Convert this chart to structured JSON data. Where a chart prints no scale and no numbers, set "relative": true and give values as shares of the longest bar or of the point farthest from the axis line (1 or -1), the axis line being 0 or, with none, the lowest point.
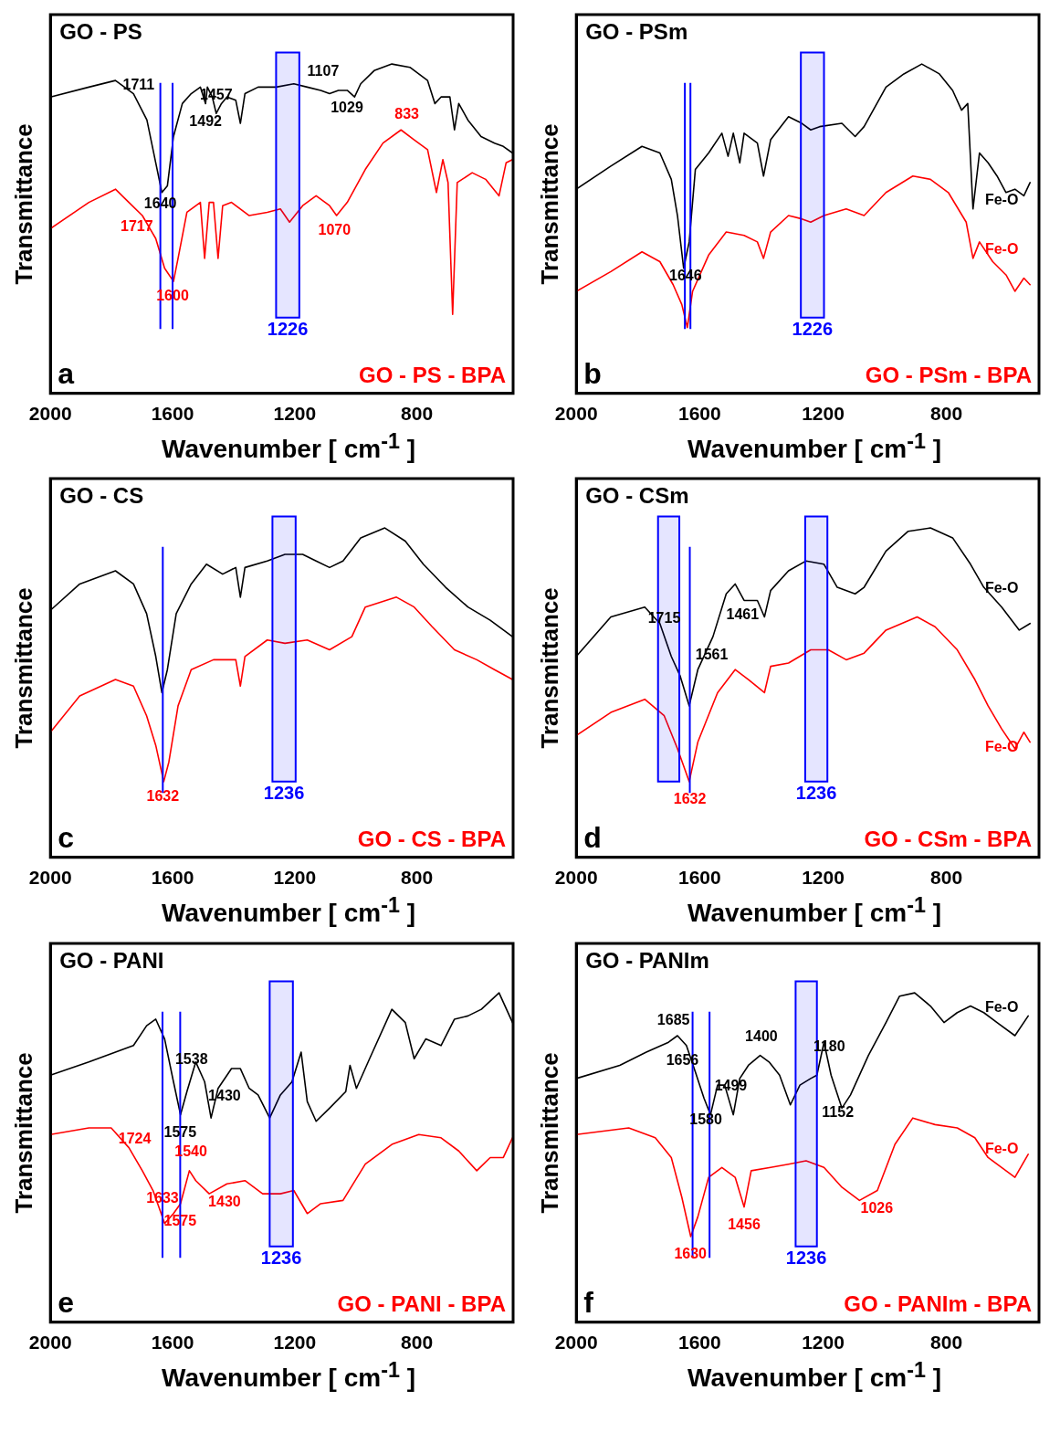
{
  "chart_data": [
    {
      "type": "line",
      "relative": true,
      "marker": "none",
      "ylabel": "Transmittance",
      "xlabel": "Wavenumber  [ cm$^{-1}$ ]",
      "xlim": [
        2000,
        485
      ],
      "xticks": [
        2000,
        1600,
        1200,
        800
      ],
      "series": [
        {
          "name": "GO - PS",
          "color": "#000000",
          "x": [
            2000,
            1874,
            1787,
            1728,
            1684,
            1655,
            1635,
            1617,
            1597,
            1568,
            1539,
            1509,
            1492,
            1486,
            1470,
            1457,
            1440,
            1422,
            1393,
            1378,
            1363,
            1320,
            1261,
            1203,
            1159,
            1115,
            1086,
            1057,
            1028,
            1004,
            984,
            940,
            882,
            823,
            765,
            741,
            721,
            692,
            677,
            663,
            633,
            590,
            546,
            517,
            487
          ],
          "values": [
            0.9,
            0.93,
            0.95,
            0.91,
            0.83,
            0.7,
            0.61,
            0.63,
            0.78,
            0.88,
            0.91,
            0.93,
            0.88,
            0.93,
            0.9,
            0.85,
            0.88,
            0.9,
            0.89,
            0.82,
            0.91,
            0.93,
            0.93,
            0.94,
            0.93,
            0.92,
            0.91,
            0.92,
            0.92,
            0.9,
            0.94,
            0.98,
            1.0,
            0.99,
            0.95,
            0.88,
            0.9,
            0.9,
            0.8,
            0.88,
            0.83,
            0.78,
            0.76,
            0.75,
            0.73
          ]
        },
        {
          "name": "GO - PS - BPA",
          "color": "#ff0000",
          "x": [
            2000,
            1874,
            1787,
            1743,
            1699,
            1655,
            1626,
            1597,
            1582,
            1553,
            1509,
            1495,
            1480,
            1466,
            1451,
            1436,
            1407,
            1349,
            1290,
            1247,
            1217,
            1174,
            1130,
            1086,
            1063,
            1028,
            969,
            911,
            852,
            809,
            765,
            736,
            715,
            698,
            683,
            668,
            619,
            575,
            531,
            508,
            487
          ],
          "values": [
            0.5,
            0.58,
            0.62,
            0.58,
            0.54,
            0.47,
            0.38,
            0.34,
            0.41,
            0.55,
            0.58,
            0.41,
            0.58,
            0.58,
            0.41,
            0.57,
            0.58,
            0.54,
            0.55,
            0.56,
            0.52,
            0.57,
            0.6,
            0.57,
            0.54,
            0.58,
            0.68,
            0.76,
            0.8,
            0.77,
            0.74,
            0.61,
            0.71,
            0.64,
            0.24,
            0.64,
            0.67,
            0.65,
            0.6,
            0.7,
            0.71
          ]
        }
      ],
      "bands": [
        {
          "axis": "x",
          "from": 1261,
          "to": 1185,
          "label": "1226",
          "color": "#0000ff"
        }
      ],
      "ref_lines": [
        {
          "axis": "x",
          "value": 1640,
          "color": "#0000ff"
        },
        {
          "axis": "x",
          "value": 1600,
          "color": "#0000ff"
        }
      ],
      "annotations": [
        "a",
        {
          "text": "1711",
          "x": 1711,
          "y": 0.88
        },
        {
          "text": "1640",
          "x": 1640,
          "y": 0.63
        },
        {
          "text": "1492",
          "x": 1492,
          "y": 0.88
        },
        {
          "text": "1457",
          "x": 1457,
          "y": 0.85
        },
        {
          "text": "1107",
          "x": 1107,
          "y": 0.92
        },
        {
          "text": "1029",
          "x": 1029,
          "y": 0.92
        },
        {
          "text": "833",
          "x": 833,
          "y": 0.79
        },
        {
          "text": "1717",
          "x": 1717,
          "y": 0.56
        },
        {
          "text": "1600",
          "x": 1600,
          "y": 0.35
        },
        {
          "text": "1070",
          "x": 1070,
          "y": 0.55
        }
      ]
    },
    {
      "type": "line",
      "relative": true,
      "marker": "none",
      "ylabel": "Transmittance",
      "xlabel": "Wavenumber  [ cm$^{-1}$ ]",
      "xlim": [
        2000,
        500
      ],
      "xticks": [
        2000,
        1600,
        1200,
        800
      ],
      "series": [
        {
          "name": "GO - PSm",
          "color": "#000000",
          "x": [
            2000,
            1888,
            1787,
            1729,
            1692,
            1672,
            1652,
            1634,
            1614,
            1571,
            1528,
            1508,
            1491,
            1470,
            1456,
            1413,
            1393,
            1370,
            1312,
            1269,
            1240,
            1211,
            1139,
            1096,
            1067,
            996,
            938,
            880,
            823,
            780,
            751,
            731,
            714,
            693,
            665,
            636,
            607,
            578,
            549,
            529
          ],
          "values": [
            0.62,
            0.69,
            0.75,
            0.73,
            0.65,
            0.54,
            0.38,
            0.46,
            0.68,
            0.73,
            0.79,
            0.72,
            0.79,
            0.7,
            0.79,
            0.76,
            0.66,
            0.77,
            0.84,
            0.82,
            0.8,
            0.81,
            0.82,
            0.78,
            0.81,
            0.93,
            0.97,
            1.0,
            0.97,
            0.92,
            0.86,
            0.88,
            0.56,
            0.73,
            0.7,
            0.66,
            0.61,
            0.62,
            0.6,
            0.64
          ]
        },
        {
          "name": "GO - PSm - BPA",
          "color": "#ff0000",
          "x": [
            2000,
            1888,
            1787,
            1729,
            1686,
            1658,
            1640,
            1623,
            1571,
            1514,
            1456,
            1413,
            1393,
            1370,
            1312,
            1269,
            1240,
            1197,
            1125,
            1067,
            996,
            909,
            852,
            794,
            736,
            714,
            693,
            650,
            607,
            578,
            549,
            529
          ],
          "values": [
            0.31,
            0.37,
            0.43,
            0.4,
            0.33,
            0.27,
            0.2,
            0.31,
            0.42,
            0.49,
            0.48,
            0.46,
            0.41,
            0.49,
            0.54,
            0.53,
            0.52,
            0.54,
            0.56,
            0.54,
            0.61,
            0.66,
            0.65,
            0.61,
            0.52,
            0.41,
            0.46,
            0.4,
            0.36,
            0.31,
            0.35,
            0.33
          ]
        }
      ],
      "bands": [
        {
          "axis": "x",
          "from": 1272,
          "to": 1197,
          "label": "1226",
          "color": "#0000ff"
        }
      ],
      "ref_lines": [
        {
          "axis": "x",
          "value": 1648,
          "color": "#0000ff"
        },
        {
          "axis": "x",
          "value": 1630,
          "color": "#0000ff"
        }
      ],
      "annotations": [
        "b",
        {
          "text": "1646",
          "x": 1646,
          "y": 0.41
        },
        {
          "text": "Fe-O",
          "x": 621,
          "y": 0.64
        },
        {
          "text": "Fe-O",
          "x": 621,
          "y": 0.38
        }
      ]
    },
    {
      "type": "line",
      "relative": true,
      "marker": "none",
      "ylabel": "Transmittance",
      "xlabel": "Wavenumber  [ cm$^{-1}$ ]",
      "xlim": [
        2000,
        485
      ],
      "xticks": [
        2000,
        1600,
        1200,
        800
      ],
      "series": [
        {
          "name": "GO - CS",
          "color": "#000000",
          "x": [
            2000,
            1904,
            1787,
            1728,
            1685,
            1655,
            1635,
            1617,
            1588,
            1539,
            1489,
            1436,
            1393,
            1378,
            1363,
            1290,
            1232,
            1174,
            1130,
            1086,
            1042,
            984,
            905,
            838,
            779,
            706,
            633,
            560,
            487
          ],
          "values": [
            0.75,
            0.83,
            0.87,
            0.83,
            0.74,
            0.61,
            0.5,
            0.57,
            0.74,
            0.83,
            0.89,
            0.86,
            0.88,
            0.79,
            0.88,
            0.9,
            0.92,
            0.92,
            0.9,
            0.88,
            0.9,
            0.97,
            1.0,
            0.96,
            0.89,
            0.82,
            0.76,
            0.72,
            0.67
          ]
        },
        {
          "name": "GO - CS - BPA",
          "color": "#ff0000",
          "x": [
            2000,
            1904,
            1787,
            1728,
            1685,
            1655,
            1629,
            1612,
            1582,
            1539,
            1466,
            1393,
            1378,
            1363,
            1290,
            1232,
            1159,
            1086,
            1013,
            969,
            867,
            809,
            750,
            677,
            604,
            546,
            487
          ],
          "values": [
            0.38,
            0.49,
            0.54,
            0.52,
            0.43,
            0.34,
            0.23,
            0.29,
            0.46,
            0.57,
            0.6,
            0.6,
            0.52,
            0.61,
            0.66,
            0.65,
            0.66,
            0.63,
            0.67,
            0.76,
            0.79,
            0.76,
            0.7,
            0.63,
            0.6,
            0.57,
            0.54
          ]
        }
      ],
      "bands": [
        {
          "axis": "x",
          "from": 1273,
          "to": 1197,
          "label": "1236",
          "color": "#0000ff"
        }
      ],
      "ref_lines": [
        {
          "axis": "x",
          "value": 1632,
          "color": "#0000ff"
        }
      ],
      "annotations": [
        "c",
        {
          "text": "1632",
          "x": 1632,
          "y": 0.24
        }
      ]
    },
    {
      "type": "line",
      "relative": true,
      "marker": "none",
      "ylabel": "Transmittance",
      "xlabel": "Wavenumber  [ cm$^{-1}$ ]",
      "xlim": [
        2000,
        500
      ],
      "xticks": [
        2000,
        1600,
        1200,
        800
      ],
      "series": [
        {
          "name": "GO - CSm",
          "color": "#000000",
          "x": [
            2000,
            1888,
            1778,
            1729,
            1692,
            1663,
            1634,
            1606,
            1557,
            1514,
            1485,
            1456,
            1413,
            1390,
            1370,
            1312,
            1255,
            1197,
            1154,
            1096,
            1067,
            996,
            924,
            852,
            780,
            722,
            679,
            621,
            564,
            529
          ],
          "values": [
            0.61,
            0.73,
            0.76,
            0.71,
            0.61,
            0.55,
            0.46,
            0.57,
            0.67,
            0.8,
            0.83,
            0.78,
            0.78,
            0.73,
            0.81,
            0.87,
            0.9,
            0.89,
            0.82,
            0.8,
            0.82,
            0.93,
            0.99,
            1.0,
            0.97,
            0.89,
            0.82,
            0.76,
            0.69,
            0.71
          ]
        },
        {
          "name": "GO - CSm - BPA",
          "color": "#ff0000",
          "x": [
            2000,
            1888,
            1778,
            1715,
            1672,
            1634,
            1606,
            1542,
            1485,
            1442,
            1390,
            1370,
            1312,
            1240,
            1183,
            1125,
            1067,
            996,
            895,
            837,
            765,
            708,
            665,
            621,
            578,
            549,
            529
          ],
          "values": [
            0.37,
            0.44,
            0.48,
            0.43,
            0.33,
            0.23,
            0.35,
            0.5,
            0.57,
            0.54,
            0.5,
            0.58,
            0.59,
            0.63,
            0.63,
            0.6,
            0.62,
            0.69,
            0.73,
            0.7,
            0.63,
            0.54,
            0.46,
            0.39,
            0.33,
            0.38,
            0.35
          ]
        }
      ],
      "bands": [
        {
          "axis": "x",
          "from": 1735,
          "to": 1666,
          "color": "#0000ff"
        },
        {
          "axis": "x",
          "from": 1258,
          "to": 1186,
          "label": "1236",
          "color": "#0000ff"
        }
      ],
      "ref_lines": [
        {
          "axis": "x",
          "value": 1632,
          "color": "#0000ff"
        }
      ],
      "annotations": [
        "d",
        {
          "text": "1715",
          "x": 1715,
          "y": 0.67
        },
        {
          "text": "1561",
          "x": 1561,
          "y": 0.67
        },
        {
          "text": "1461",
          "x": 1461,
          "y": 0.79
        },
        {
          "text": "1632",
          "x": 1632,
          "y": 0.23
        },
        {
          "text": "Fe-O",
          "x": 621,
          "y": 0.76
        },
        {
          "text": "Fe-O",
          "x": 621,
          "y": 0.39
        }
      ]
    },
    {
      "type": "line",
      "relative": true,
      "marker": "none",
      "ylabel": "Transmittance",
      "xlabel": "Wavenumber  [ cm$^{-1}$ ]",
      "xlim": [
        2000,
        485
      ],
      "xticks": [
        2000,
        1600,
        1200,
        800
      ],
      "series": [
        {
          "name": "GO - PANI",
          "color": "#000000",
          "x": [
            2000,
            1874,
            1728,
            1685,
            1655,
            1626,
            1597,
            1574,
            1553,
            1524,
            1495,
            1474,
            1451,
            1407,
            1378,
            1349,
            1320,
            1282,
            1247,
            1209,
            1179,
            1159,
            1130,
            1086,
            1033,
            1019,
            998,
            955,
            882,
            838,
            809,
            771,
            721,
            677,
            633,
            589,
            531,
            487
          ],
          "values": [
            0.75,
            0.79,
            0.84,
            0.9,
            0.92,
            0.86,
            0.73,
            0.63,
            0.7,
            0.79,
            0.73,
            0.62,
            0.71,
            0.77,
            0.77,
            0.71,
            0.69,
            0.62,
            0.69,
            0.73,
            0.82,
            0.67,
            0.61,
            0.65,
            0.7,
            0.78,
            0.71,
            0.8,
            0.95,
            0.91,
            0.8,
            0.86,
            0.84,
            0.92,
            0.93,
            0.95,
            1.0,
            0.91
          ]
        },
        {
          "name": "GO - PANI - BPA",
          "color": "#ff0000",
          "x": [
            2000,
            1874,
            1801,
            1743,
            1699,
            1664,
            1626,
            1597,
            1574,
            1545,
            1524,
            1480,
            1422,
            1363,
            1305,
            1247,
            1203,
            1159,
            1115,
            1042,
            969,
            882,
            794,
            721,
            663,
            604,
            560,
            517,
            487
          ],
          "values": [
            0.57,
            0.59,
            0.59,
            0.53,
            0.46,
            0.4,
            0.3,
            0.33,
            0.36,
            0.46,
            0.43,
            0.39,
            0.42,
            0.43,
            0.39,
            0.39,
            0.4,
            0.33,
            0.36,
            0.37,
            0.48,
            0.54,
            0.57,
            0.56,
            0.52,
            0.46,
            0.5,
            0.5,
            0.56
          ]
        }
      ],
      "bands": [
        {
          "axis": "x",
          "from": 1282,
          "to": 1206,
          "label": "1236",
          "color": "#0000ff"
        }
      ],
      "ref_lines": [
        {
          "axis": "x",
          "value": 1575,
          "color": "#0000ff"
        },
        {
          "axis": "x",
          "value": 1633,
          "color": "#0000ff"
        }
      ],
      "annotations": [
        "e",
        {
          "text": "1538",
          "x": 1538,
          "y": 0.74
        },
        {
          "text": "1575",
          "x": 1575,
          "y": 0.63
        },
        {
          "text": "1430",
          "x": 1430,
          "y": 0.74
        },
        {
          "text": "1724",
          "x": 1724,
          "y": 0.5
        },
        {
          "text": "1540",
          "x": 1540,
          "y": 0.46
        },
        {
          "text": "1430",
          "x": 1430,
          "y": 0.42
        },
        {
          "text": "1575",
          "x": 1575,
          "y": 0.36
        },
        {
          "text": "1633",
          "x": 1633,
          "y": 0.32
        }
      ]
    },
    {
      "type": "line",
      "relative": true,
      "marker": "none",
      "ylabel": "Transmittance",
      "xlabel": "Wavenumber  [ cm$^{-1}$ ]",
      "xlim": [
        2000,
        500
      ],
      "xticks": [
        2000,
        1600,
        1200,
        800
      ],
      "series": [
        {
          "name": "GO - PANIm",
          "color": "#000000",
          "x": [
            2000,
            1859,
            1773,
            1701,
            1672,
            1643,
            1614,
            1586,
            1565,
            1542,
            1519,
            1491,
            1470,
            1442,
            1404,
            1375,
            1341,
            1306,
            1275,
            1240,
            1220,
            1197,
            1174,
            1139,
            1111,
            1053,
            996,
            952,
            903,
            852,
            808,
            765,
            722,
            679,
            636,
            578,
            535
          ],
          "values": [
            0.74,
            0.78,
            0.82,
            0.85,
            0.87,
            0.84,
            0.76,
            0.68,
            0.63,
            0.72,
            0.72,
            0.63,
            0.74,
            0.78,
            0.81,
            0.79,
            0.75,
            0.66,
            0.72,
            0.74,
            0.75,
            0.85,
            0.75,
            0.65,
            0.69,
            0.81,
            0.91,
            0.99,
            1.0,
            0.96,
            0.91,
            0.94,
            0.96,
            0.94,
            0.91,
            0.87,
            0.93
          ]
        },
        {
          "name": "GO - PANIm - BPA",
          "color": "#ff0000",
          "x": [
            2000,
            1830,
            1744,
            1692,
            1658,
            1629,
            1606,
            1571,
            1528,
            1485,
            1456,
            1433,
            1370,
            1312,
            1255,
            1197,
            1139,
            1082,
            1024,
            967,
            909,
            837,
            765,
            708,
            665,
            621,
            578,
            535
          ],
          "values": [
            0.57,
            0.59,
            0.56,
            0.5,
            0.38,
            0.26,
            0.32,
            0.44,
            0.47,
            0.44,
            0.35,
            0.46,
            0.47,
            0.48,
            0.49,
            0.47,
            0.41,
            0.37,
            0.4,
            0.54,
            0.62,
            0.6,
            0.59,
            0.56,
            0.5,
            0.47,
            0.44,
            0.51
          ]
        }
      ],
      "bands": [
        {
          "axis": "x",
          "from": 1289,
          "to": 1220,
          "label": "1236",
          "color": "#0000ff"
        }
      ],
      "ref_lines": [
        {
          "axis": "x",
          "value": 1568,
          "color": "#0000ff"
        },
        {
          "axis": "x",
          "value": 1623,
          "color": "#0000ff"
        }
      ],
      "annotations": [
        "f",
        {
          "text": "1685",
          "x": 1685,
          "y": 0.86
        },
        {
          "text": "1656",
          "x": 1656,
          "y": 0.85
        },
        {
          "text": "1580",
          "x": 1580,
          "y": 0.67
        },
        {
          "text": "1499",
          "x": 1499,
          "y": 0.66
        },
        {
          "text": "1400",
          "x": 1400,
          "y": 0.81
        },
        {
          "text": "1180",
          "x": 1180,
          "y": 0.78
        },
        {
          "text": "1152",
          "x": 1152,
          "y": 0.69
        },
        {
          "text": "1456",
          "x": 1456,
          "y": 0.35
        },
        {
          "text": "1026",
          "x": 1026,
          "y": 0.4
        },
        {
          "text": "1630",
          "x": 1630,
          "y": 0.26
        },
        {
          "text": "Fe-O",
          "x": 621,
          "y": 0.9
        },
        {
          "text": "Fe-O",
          "x": 621,
          "y": 0.47
        }
      ]
    }
  ]
}
